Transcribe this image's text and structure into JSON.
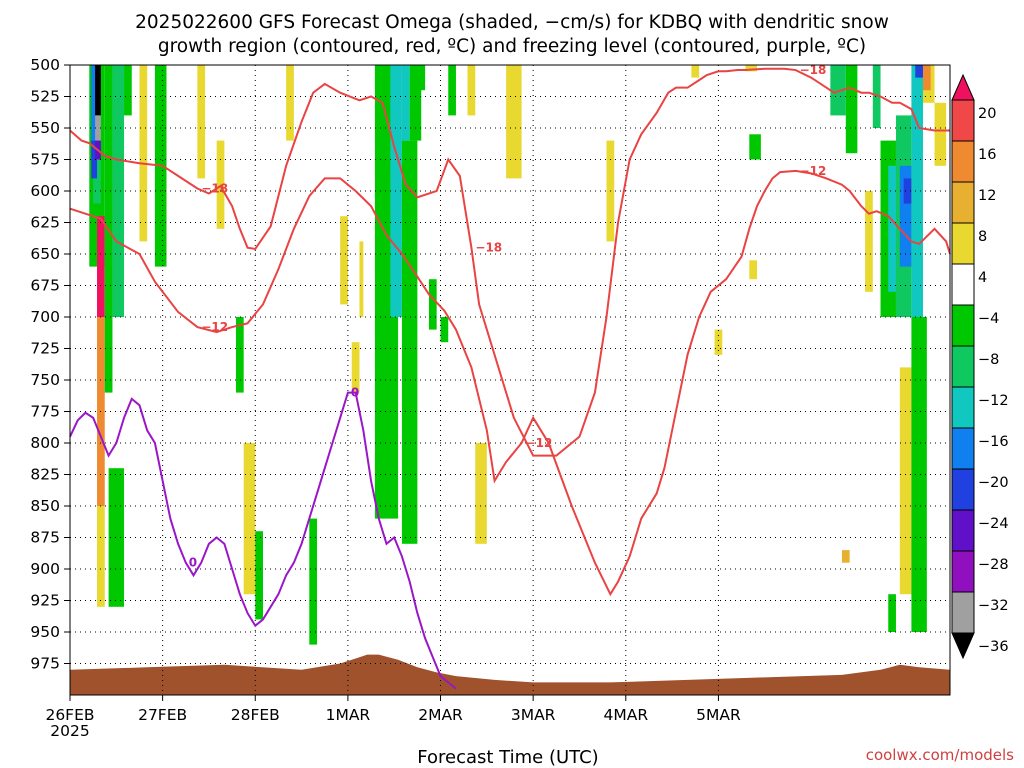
{
  "title_line1": "2025022600 GFS Forecast Omega (shaded, −cm/s) for KDBQ with dendritic snow",
  "title_line2": "growth region (contoured, red, ºC) and freezing level (contoured, purple, ºC)",
  "credit": "coolwx.com/models",
  "chart_data": {
    "type": "heatmap",
    "xlabel": "Forecast Time (UTC)",
    "ylabel": "",
    "x_tick_labels": [
      "26FEB",
      "27FEB",
      "28FEB",
      "1MAR",
      "2MAR",
      "3MAR",
      "4MAR",
      "5MAR"
    ],
    "x_first_year": "2025",
    "x_range_hours": [
      0,
      228
    ],
    "y_tick_labels": [
      "500",
      "525",
      "550",
      "575",
      "600",
      "625",
      "650",
      "675",
      "700",
      "725",
      "750",
      "775",
      "800",
      "825",
      "850",
      "875",
      "900",
      "925",
      "950",
      "975"
    ],
    "y_range_hPa": [
      500,
      1000
    ],
    "grid": true,
    "colorbar": {
      "labels": [
        "20",
        "16",
        "12",
        "8",
        "4",
        "−4",
        "−8",
        "−12",
        "−16",
        "−20",
        "−24",
        "−28",
        "−32",
        "−36"
      ],
      "colors": [
        "#f01060",
        "#f04848",
        "#f08a30",
        "#e8b030",
        "#e8d830",
        "#ffffff",
        "#00c800",
        "#10c860",
        "#10c8c0",
        "#1080f0",
        "#2040e0",
        "#6010c8",
        "#9010c0",
        "#a0a0a0",
        "#000000"
      ]
    },
    "omega_cells": [
      {
        "t": [
          5,
          9
        ],
        "p": [
          500,
          660
        ],
        "color": "#00c800"
      },
      {
        "t": [
          6,
          8
        ],
        "p": [
          500,
          610
        ],
        "color": "#10c860"
      },
      {
        "t": [
          5.5,
          7
        ],
        "p": [
          500,
          560
        ],
        "color": "#1080f0"
      },
      {
        "t": [
          5.5,
          7
        ],
        "p": [
          560,
          590
        ],
        "color": "#2040e0"
      },
      {
        "t": [
          6.5,
          8
        ],
        "p": [
          500,
          540
        ],
        "color": "#000000"
      },
      {
        "t": [
          6.5,
          8
        ],
        "p": [
          540,
          560
        ],
        "color": "#a0a0a0"
      },
      {
        "t": [
          6.5,
          8
        ],
        "p": [
          560,
          575
        ],
        "color": "#6010c8"
      },
      {
        "t": [
          7,
          9
        ],
        "p": [
          620,
          700
        ],
        "color": "#f01060"
      },
      {
        "t": [
          7,
          9
        ],
        "p": [
          700,
          850
        ],
        "color": "#f08a30"
      },
      {
        "t": [
          7,
          9
        ],
        "p": [
          850,
          930
        ],
        "color": "#e8d830"
      },
      {
        "t": [
          9,
          11
        ],
        "p": [
          500,
          760
        ],
        "color": "#00c800"
      },
      {
        "t": [
          11,
          14
        ],
        "p": [
          500,
          700
        ],
        "color": "#10c860"
      },
      {
        "t": [
          14,
          16
        ],
        "p": [
          500,
          540
        ],
        "color": "#00c800"
      },
      {
        "t": [
          10,
          14
        ],
        "p": [
          820,
          930
        ],
        "color": "#00c800"
      },
      {
        "t": [
          18,
          20
        ],
        "p": [
          500,
          640
        ],
        "color": "#e8d830"
      },
      {
        "t": [
          22,
          25
        ],
        "p": [
          500,
          660
        ],
        "color": "#00c800"
      },
      {
        "t": [
          33,
          35
        ],
        "p": [
          500,
          590
        ],
        "color": "#e8d830"
      },
      {
        "t": [
          38,
          40
        ],
        "p": [
          560,
          630
        ],
        "color": "#e8d830"
      },
      {
        "t": [
          43,
          45
        ],
        "p": [
          700,
          760
        ],
        "color": "#00c800"
      },
      {
        "t": [
          45,
          48
        ],
        "p": [
          800,
          920
        ],
        "color": "#e8d830"
      },
      {
        "t": [
          48,
          50
        ],
        "p": [
          870,
          940
        ],
        "color": "#00c800"
      },
      {
        "t": [
          56,
          58
        ],
        "p": [
          500,
          560
        ],
        "color": "#e8d830"
      },
      {
        "t": [
          62,
          64
        ],
        "p": [
          860,
          960
        ],
        "color": "#00c800"
      },
      {
        "t": [
          70,
          72
        ],
        "p": [
          620,
          690
        ],
        "color": "#e8d830"
      },
      {
        "t": [
          73,
          75
        ],
        "p": [
          720,
          760
        ],
        "color": "#e8d830"
      },
      {
        "t": [
          75,
          76
        ],
        "p": [
          640,
          700
        ],
        "color": "#e8d830"
      },
      {
        "t": [
          79,
          85
        ],
        "p": [
          500,
          860
        ],
        "color": "#00c800"
      },
      {
        "t": [
          83,
          86
        ],
        "p": [
          500,
          700
        ],
        "color": "#10c8c0"
      },
      {
        "t": [
          86,
          88
        ],
        "p": [
          500,
          560
        ],
        "color": "#10c8c0"
      },
      {
        "t": [
          88,
          91
        ],
        "p": [
          500,
          560
        ],
        "color": "#00c800"
      },
      {
        "t": [
          86,
          90
        ],
        "p": [
          560,
          880
        ],
        "color": "#00c800"
      },
      {
        "t": [
          90,
          92
        ],
        "p": [
          500,
          520
        ],
        "color": "#00c800"
      },
      {
        "t": [
          98,
          100
        ],
        "p": [
          500,
          540
        ],
        "color": "#00c800"
      },
      {
        "t": [
          103,
          105
        ],
        "p": [
          500,
          540
        ],
        "color": "#e8d830"
      },
      {
        "t": [
          93,
          95
        ],
        "p": [
          670,
          710
        ],
        "color": "#00c800"
      },
      {
        "t": [
          96,
          98
        ],
        "p": [
          700,
          720
        ],
        "color": "#00c800"
      },
      {
        "t": [
          105,
          108
        ],
        "p": [
          800,
          880
        ],
        "color": "#e8d830"
      },
      {
        "t": [
          113,
          117
        ],
        "p": [
          500,
          590
        ],
        "color": "#e8d830"
      },
      {
        "t": [
          139,
          141
        ],
        "p": [
          560,
          640
        ],
        "color": "#e8d830"
      },
      {
        "t": [
          161,
          163
        ],
        "p": [
          500,
          510
        ],
        "color": "#e8d830"
      },
      {
        "t": [
          167,
          169
        ],
        "p": [
          710,
          730
        ],
        "color": "#e8d830"
      },
      {
        "t": [
          175,
          178
        ],
        "p": [
          500,
          505
        ],
        "color": "#e8d830"
      },
      {
        "t": [
          176,
          178
        ],
        "p": [
          655,
          670
        ],
        "color": "#e8d830"
      },
      {
        "t": [
          176,
          179
        ],
        "p": [
          555,
          575
        ],
        "color": "#00c800"
      },
      {
        "t": [
          200,
          202
        ],
        "p": [
          885,
          895
        ],
        "color": "#e8b030"
      },
      {
        "t": [
          197,
          201
        ],
        "p": [
          500,
          540
        ],
        "color": "#10c860"
      },
      {
        "t": [
          201,
          204
        ],
        "p": [
          500,
          570
        ],
        "color": "#00c800"
      },
      {
        "t": [
          206,
          208
        ],
        "p": [
          600,
          680
        ],
        "color": "#e8d830"
      },
      {
        "t": [
          208,
          210
        ],
        "p": [
          500,
          550
        ],
        "color": "#10c860"
      },
      {
        "t": [
          210,
          214
        ],
        "p": [
          560,
          700
        ],
        "color": "#00c800"
      },
      {
        "t": [
          212,
          215
        ],
        "p": [
          580,
          680
        ],
        "color": "#10c8c0"
      },
      {
        "t": [
          214,
          218
        ],
        "p": [
          540,
          700
        ],
        "color": "#10c860"
      },
      {
        "t": [
          215,
          218
        ],
        "p": [
          580,
          660
        ],
        "color": "#1080f0"
      },
      {
        "t": [
          216,
          218
        ],
        "p": [
          590,
          610
        ],
        "color": "#2040e0"
      },
      {
        "t": [
          218,
          221
        ],
        "p": [
          500,
          700
        ],
        "color": "#10c8c0"
      },
      {
        "t": [
          219,
          221
        ],
        "p": [
          500,
          510
        ],
        "color": "#2040e0"
      },
      {
        "t": [
          221,
          224
        ],
        "p": [
          500,
          530
        ],
        "color": "#e8d830"
      },
      {
        "t": [
          221,
          223
        ],
        "p": [
          500,
          520
        ],
        "color": "#f08a30"
      },
      {
        "t": [
          215,
          218
        ],
        "p": [
          740,
          920
        ],
        "color": "#e8d830"
      },
      {
        "t": [
          218,
          222
        ],
        "p": [
          700,
          950
        ],
        "color": "#00c800"
      },
      {
        "t": [
          212,
          214
        ],
        "p": [
          920,
          950
        ],
        "color": "#00c800"
      },
      {
        "t": [
          224,
          227
        ],
        "p": [
          530,
          580
        ],
        "color": "#e8d830"
      }
    ],
    "red_contours": [
      {
        "t": [
          0,
          3,
          5,
          9,
          12,
          18,
          24,
          28,
          33,
          36,
          39,
          42,
          44,
          46,
          48,
          52,
          56,
          60,
          63,
          66,
          70,
          75,
          78,
          81,
          84,
          87,
          90,
          95,
          98,
          101,
          104,
          106,
          110,
          115,
          120,
          126,
          132,
          136,
          139,
          142,
          145,
          148,
          152,
          155,
          157,
          160,
          163,
          165,
          168,
          170,
          173,
          175,
          180,
          185,
          188,
          192,
          196,
          198,
          200,
          202,
          205,
          207,
          210,
          213,
          215,
          218,
          220,
          224,
          228
        ],
        "p": [
          552,
          560,
          562,
          572,
          575,
          578,
          580,
          588,
          598,
          602,
          596,
          612,
          630,
          645,
          646,
          628,
          580,
          545,
          522,
          515,
          522,
          528,
          525,
          530,
          565,
          595,
          605,
          600,
          575,
          588,
          645,
          690,
          730,
          780,
          810,
          810,
          795,
          760,
          700,
          625,
          575,
          555,
          538,
          522,
          518,
          518,
          512,
          508,
          505,
          505,
          504,
          504,
          503,
          503,
          504,
          510,
          518,
          522,
          520,
          518,
          522,
          522,
          525,
          530,
          530,
          535,
          550,
          552,
          552
        ],
        "label": "−18"
      },
      {
        "t": [
          0,
          4,
          8,
          12,
          18,
          22,
          28,
          33,
          38,
          42,
          46,
          50,
          54,
          58,
          62,
          66,
          70,
          74,
          78,
          82,
          86,
          90,
          93,
          97,
          100,
          104,
          108,
          110,
          113,
          117,
          120,
          124,
          130,
          136,
          140,
          142,
          145,
          148,
          152,
          154,
          156,
          158,
          160,
          163,
          166,
          170,
          174,
          176,
          178,
          180,
          182,
          184,
          188,
          192,
          196,
          200,
          202,
          205,
          207,
          209,
          212,
          215,
          218,
          220,
          224,
          227,
          228
        ],
        "p": [
          614,
          618,
          622,
          640,
          650,
          672,
          696,
          708,
          712,
          708,
          705,
          690,
          662,
          630,
          604,
          590,
          590,
          600,
          612,
          635,
          650,
          668,
          682,
          695,
          710,
          740,
          790,
          830,
          815,
          800,
          780,
          800,
          850,
          895,
          920,
          910,
          890,
          860,
          840,
          820,
          790,
          760,
          730,
          700,
          680,
          670,
          652,
          630,
          612,
          600,
          590,
          585,
          584,
          586,
          590,
          595,
          600,
          612,
          618,
          616,
          620,
          630,
          640,
          642,
          630,
          640,
          650
        ],
        "label": "−12"
      }
    ],
    "purple_contour": {
      "t": [
        0,
        2,
        4,
        6,
        8,
        10,
        12,
        14,
        16,
        18,
        20,
        22,
        24,
        26,
        28,
        30,
        32,
        34,
        36,
        38,
        40,
        42,
        44,
        46,
        48,
        50,
        52,
        54,
        56,
        58,
        60,
        62,
        64,
        66,
        68,
        70,
        72,
        74,
        76,
        78,
        80,
        82,
        84,
        86,
        88,
        90,
        92,
        94,
        96,
        98,
        100
      ],
      "p": [
        795,
        782,
        776,
        780,
        795,
        810,
        800,
        780,
        765,
        770,
        790,
        800,
        830,
        860,
        880,
        895,
        905,
        895,
        880,
        875,
        880,
        900,
        920,
        935,
        945,
        940,
        930,
        920,
        905,
        895,
        880,
        860,
        840,
        820,
        800,
        780,
        760,
        760,
        790,
        830,
        860,
        880,
        875,
        890,
        910,
        935,
        955,
        970,
        985,
        990,
        995
      ],
      "label": "0"
    },
    "terrain_surface": {
      "t": [
        0,
        20,
        40,
        60,
        70,
        75,
        77,
        80,
        85,
        90,
        95,
        100,
        110,
        120,
        140,
        160,
        180,
        200,
        210,
        215,
        220,
        228
      ],
      "p": [
        980,
        978,
        976,
        980,
        975,
        970,
        968,
        968,
        972,
        978,
        982,
        985,
        988,
        990,
        990,
        988,
        986,
        984,
        980,
        976,
        978,
        980
      ]
    }
  }
}
